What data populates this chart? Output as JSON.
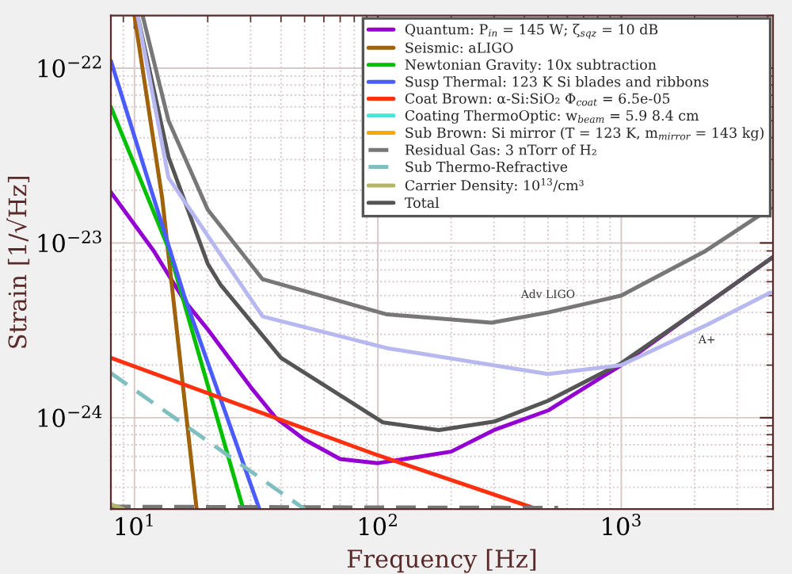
{
  "chart_data": {
    "type": "line",
    "xlabel": "Frequency [Hz]",
    "ylabel": "Strain [1/√Hz]",
    "log": "xy",
    "xlim": [
      8,
      4200
    ],
    "ylim": [
      3e-25,
      2e-22
    ],
    "xticks": [
      {
        "value": 10,
        "label": "10$^{1}$"
      },
      {
        "value": 100,
        "label": "10$^{2}$"
      },
      {
        "value": 1000,
        "label": "10$^{3}$"
      }
    ],
    "yticks": [
      {
        "value": 1e-24,
        "label": "10$^{−24}$"
      },
      {
        "value": 1e-23,
        "label": "10$^{−23}$"
      },
      {
        "value": 1e-22,
        "label": "10$^{−22}$"
      }
    ],
    "grid": true,
    "legend": "top right",
    "series": [
      {
        "name": "Quantum: P$_{in}$ = 145 W; ζ$_{sqz}$ = 10 dB",
        "color": "#9400d3",
        "x": [
          8,
          12,
          16,
          20,
          30,
          38,
          50,
          70,
          100,
          150,
          200,
          300,
          500,
          1000,
          2000,
          4200
        ],
        "values": [
          1.95e-23,
          9e-24,
          4.7e-24,
          3.2e-24,
          1.5e-24,
          1e-24,
          7.5e-25,
          5.8e-25,
          5.5e-25,
          6e-25,
          6.4e-25,
          8.5e-25,
          1.1e-24,
          2e-24,
          4e-24,
          8.3e-24
        ]
      },
      {
        "name": "Seismic: aLIGO",
        "color": "#a0620a",
        "x": [
          10,
          13,
          18
        ],
        "values": [
          2e-22,
          1.8e-23,
          3e-25
        ]
      },
      {
        "name": "Newtonian Gravity: 10x subtraction",
        "color": "#00c000",
        "x": [
          8,
          13.8,
          28
        ],
        "values": [
          6e-23,
          9.3e-24,
          3e-25
        ]
      },
      {
        "name": "Susp Thermal: 123 K Si blades and ribbons",
        "color": "#4b5cff",
        "x": [
          8,
          16,
          32.6
        ],
        "values": [
          1.1e-22,
          5e-24,
          3e-25
        ]
      },
      {
        "name": "Coat Brown: α-Si:SiO₂ Φ$_{coat}$ = 6.5e-05",
        "color": "#ff3010",
        "x": [
          8,
          100,
          451
        ],
        "values": [
          2.2e-24,
          6.1e-25,
          3e-25
        ]
      },
      {
        "name": "Coating ThermoOptic: w$_{beam}$ = 5.9 8.4 cm",
        "color": "#40e8d8"
      },
      {
        "name": "Sub Brown: Si mirror (T = 123 K, m$_{mirror}$ = 143 kg)",
        "color": "#ffa500"
      },
      {
        "name": "Residual Gas: 3 nTorr of H₂",
        "color": "#777777",
        "line_style": "dashed",
        "x": [
          8,
          550
        ],
        "values": [
          3.1e-25,
          3.05e-25
        ]
      },
      {
        "name": "Sub Thermo-Refractive",
        "color": "#7fbfbf",
        "line_style": "dashed",
        "x": [
          8,
          50
        ],
        "values": [
          1.8e-24,
          3e-25
        ]
      },
      {
        "name": "Carrier Density: 10$^{13}$/cm³",
        "color": "#b5b56a",
        "x": [
          8,
          9
        ],
        "values": [
          3.2e-25,
          3e-25
        ]
      },
      {
        "name": "Total",
        "color": "#555555",
        "x": [
          10.3,
          13.8,
          20,
          22.5,
          40,
          105,
          178,
          300,
          500,
          1000,
          2000,
          4200
        ],
        "values": [
          2e-22,
          3.1e-23,
          7.6e-24,
          5.8e-24,
          2.2e-24,
          9.4e-25,
          8.5e-25,
          9.5e-25,
          1.25e-24,
          2.05e-24,
          4e-24,
          8.3e-24
        ]
      },
      {
        "color": "#777777",
        "x": [
          10.8,
          13.8,
          20,
          33.6,
          109,
          293,
          500,
          1000,
          2190,
          4100
        ],
        "values": [
          2e-22,
          5e-23,
          1.55e-23,
          6.2e-24,
          3.9e-24,
          3.5e-24,
          4e-24,
          5e-24,
          8.9e-24,
          1.58e-23
        ]
      },
      {
        "color": "#b8b8f0",
        "x": [
          10.3,
          13.8,
          20,
          33.6,
          109,
          500,
          1000,
          2250,
          4100
        ],
        "values": [
          2e-22,
          2.36e-23,
          1.1e-23,
          3.8e-24,
          2.5e-24,
          1.78e-24,
          2e-24,
          3.4e-24,
          5.2e-24
        ]
      }
    ],
    "annotations": [
      {
        "text": "Adv LIGO",
        "x": 500,
        "y": 4e-24
      },
      {
        "text": "A+",
        "x": 2250,
        "y": 3.4e-24
      }
    ]
  }
}
